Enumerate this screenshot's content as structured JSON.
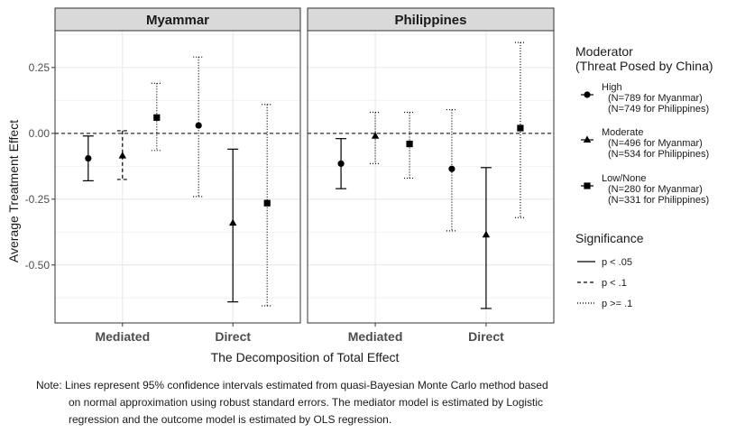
{
  "chart_data": {
    "type": "scatter",
    "subtype": "point-range (error bars)",
    "facets": [
      "Myammar",
      "Philippines"
    ],
    "categories": [
      "Mediated",
      "Direct"
    ],
    "xlabel": "The Decomposition of Total Effect",
    "ylabel": "Average Treatment Effect",
    "ylim": [
      -0.72,
      0.39
    ],
    "yticks": [
      0.25,
      0.0,
      -0.25,
      -0.5
    ],
    "ytick_labels": [
      "0.25",
      "0.00",
      "-0.25",
      "-0.50"
    ],
    "reference_line": 0,
    "grid": true,
    "legend_position": "right",
    "legend": {
      "moderator_title_1": "Moderator",
      "moderator_title_2": "(Threat Posed by China)",
      "moderator_items": [
        {
          "key": "high",
          "shape": "circle",
          "line1": "High",
          "line2": "(N=789 for Myanmar)",
          "line3": "(N=749 for Philippines)"
        },
        {
          "key": "moderate",
          "shape": "triangle",
          "line1": "Moderate",
          "line2": "(N=496 for Myanmar)",
          "line3": "(N=534 for Philippines)"
        },
        {
          "key": "low",
          "shape": "square",
          "line1": "Low/None",
          "line2": "(N=280 for Myanmar)",
          "line3": "(N=331 for Philippines)"
        }
      ],
      "significance_title": "Significance",
      "significance_items": [
        {
          "style": "solid",
          "label": "p < .05"
        },
        {
          "style": "dashed",
          "label": "p < .1"
        },
        {
          "style": "dotted",
          "label": "p >= .1"
        }
      ]
    },
    "series": [
      {
        "facet": "Myammar",
        "category": "Mediated",
        "moderator": "high",
        "estimate": -0.095,
        "ci": [
          -0.18,
          -0.01
        ],
        "significance": "solid"
      },
      {
        "facet": "Myammar",
        "category": "Mediated",
        "moderator": "moderate",
        "estimate": -0.085,
        "ci": [
          -0.175,
          0.01
        ],
        "significance": "dashed"
      },
      {
        "facet": "Myammar",
        "category": "Mediated",
        "moderator": "low",
        "estimate": 0.06,
        "ci": [
          -0.065,
          0.19
        ],
        "significance": "dotted"
      },
      {
        "facet": "Myammar",
        "category": "Direct",
        "moderator": "high",
        "estimate": 0.03,
        "ci": [
          -0.24,
          0.29
        ],
        "significance": "dotted"
      },
      {
        "facet": "Myammar",
        "category": "Direct",
        "moderator": "moderate",
        "estimate": -0.34,
        "ci": [
          -0.64,
          -0.06
        ],
        "significance": "solid"
      },
      {
        "facet": "Myammar",
        "category": "Direct",
        "moderator": "low",
        "estimate": -0.265,
        "ci": [
          -0.655,
          0.11
        ],
        "significance": "dotted"
      },
      {
        "facet": "Philippines",
        "category": "Mediated",
        "moderator": "high",
        "estimate": -0.115,
        "ci": [
          -0.21,
          -0.02
        ],
        "significance": "solid"
      },
      {
        "facet": "Philippines",
        "category": "Mediated",
        "moderator": "moderate",
        "estimate": -0.01,
        "ci": [
          -0.115,
          0.08
        ],
        "significance": "dotted"
      },
      {
        "facet": "Philippines",
        "category": "Mediated",
        "moderator": "low",
        "estimate": -0.04,
        "ci": [
          -0.17,
          0.08
        ],
        "significance": "dotted"
      },
      {
        "facet": "Philippines",
        "category": "Direct",
        "moderator": "high",
        "estimate": -0.135,
        "ci": [
          -0.37,
          0.09
        ],
        "significance": "dotted"
      },
      {
        "facet": "Philippines",
        "category": "Direct",
        "moderator": "moderate",
        "estimate": -0.385,
        "ci": [
          -0.665,
          -0.13
        ],
        "significance": "solid"
      },
      {
        "facet": "Philippines",
        "category": "Direct",
        "moderator": "low",
        "estimate": 0.02,
        "ci": [
          -0.32,
          0.345
        ],
        "significance": "dotted"
      }
    ],
    "note_line1": "Note: Lines represent 95% confidence intervals estimated from quasi-Bayesian Monte Carlo method based",
    "note_line2": "on normal approximation using robust standard errors. The mediator model is estimated by Logistic",
    "note_line3": "regression and the outcome model is estimated by OLS regression."
  }
}
